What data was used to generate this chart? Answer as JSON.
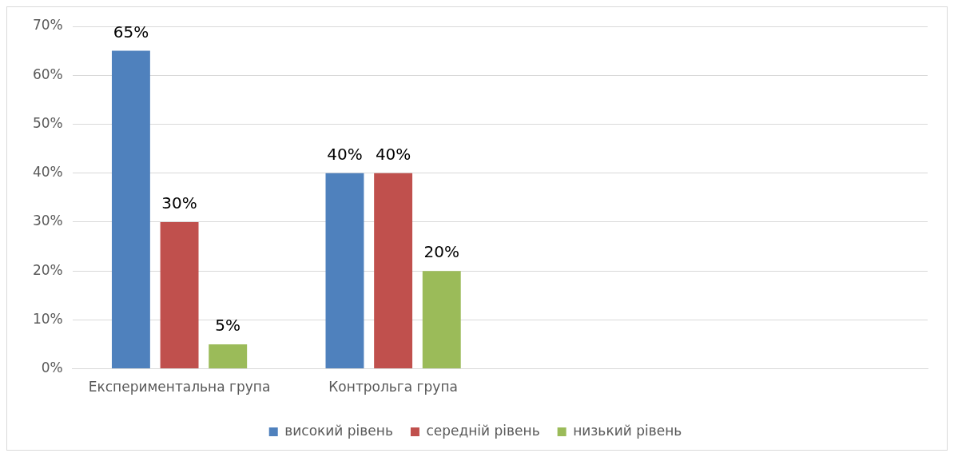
{
  "chart_data": {
    "type": "bar",
    "categories": [
      "Експериментальна група",
      "Контрольга група",
      null,
      null
    ],
    "series": [
      {
        "name": "високий рівень",
        "color": "#4f81bd",
        "values": [
          65,
          40,
          null,
          null
        ],
        "value_labels": [
          "65%",
          "40%",
          null,
          null
        ]
      },
      {
        "name": "середній рівень",
        "color": "#c0504d",
        "values": [
          30,
          40,
          null,
          null
        ],
        "value_labels": [
          "30%",
          "40%",
          null,
          null
        ]
      },
      {
        "name": "низький рівень",
        "color": "#9bbb59",
        "values": [
          5,
          20,
          null,
          null
        ],
        "value_labels": [
          "5%",
          "20%",
          null,
          null
        ]
      }
    ],
    "ylim": [
      0,
      70
    ],
    "yticks": [
      {
        "value": 0,
        "label": "0%"
      },
      {
        "value": 10,
        "label": "10%"
      },
      {
        "value": 20,
        "label": "20%"
      },
      {
        "value": 30,
        "label": "30%"
      },
      {
        "value": 40,
        "label": "40%"
      },
      {
        "value": 50,
        "label": "50%"
      },
      {
        "value": 60,
        "label": "60%"
      },
      {
        "value": 70,
        "label": "70%"
      }
    ],
    "grid": "y",
    "legend": "bottom"
  }
}
